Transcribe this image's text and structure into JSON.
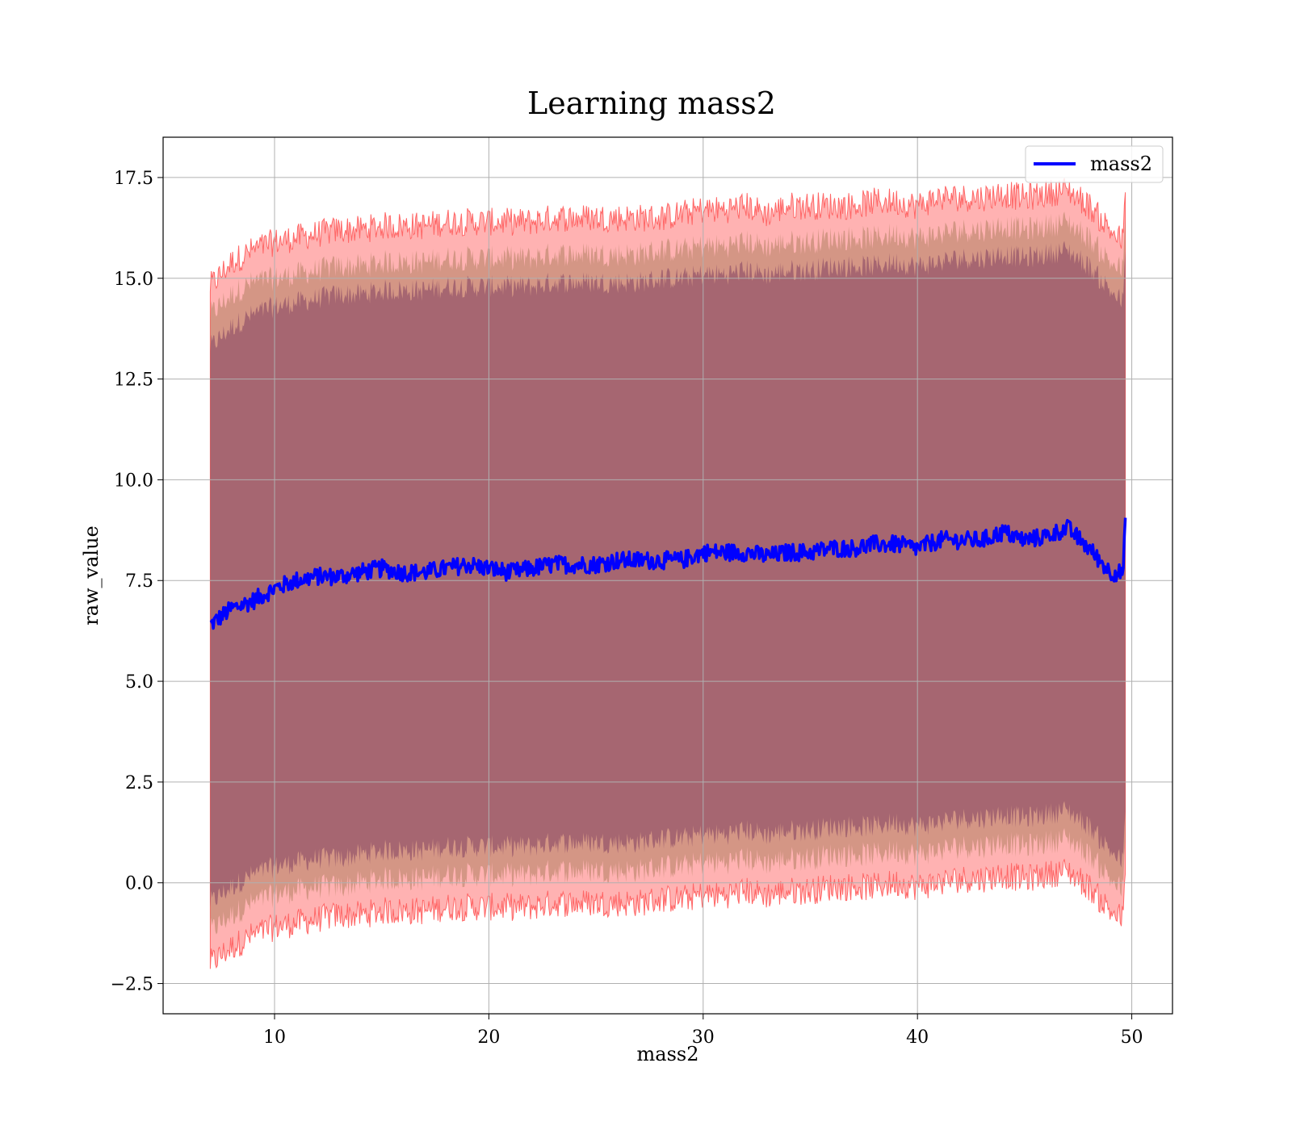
{
  "chart_data": {
    "type": "line",
    "title": "Learning mass2",
    "xlabel": "mass2",
    "ylabel": "raw_value",
    "xlim": [
      4.8,
      51.9
    ],
    "ylim": [
      -3.25,
      18.5
    ],
    "xticks": [
      10,
      20,
      30,
      40,
      50
    ],
    "yticks": [
      -2.5,
      0.0,
      2.5,
      5.0,
      7.5,
      10.0,
      12.5,
      15.0,
      17.5
    ],
    "xtick_labels": [
      "10",
      "20",
      "30",
      "40",
      "50"
    ],
    "ytick_labels": [
      "−2.5",
      "0.0",
      "2.5",
      "5.0",
      "7.5",
      "10.0",
      "12.5",
      "15.0",
      "17.5"
    ],
    "grid": true,
    "legend": {
      "position": "top-right",
      "entries": [
        "mass2"
      ]
    },
    "colors": {
      "line": "#0000ff",
      "band_outer": "#ff7f7f",
      "band_outer_edge": "#ff6666",
      "band_middle": "#b08060",
      "band_inner": "#804060"
    },
    "series": [
      {
        "name": "mass2",
        "x": [
          7.0,
          8.0,
          9.0,
          10.0,
          11.0,
          12.0,
          13.0,
          14.0,
          15.0,
          16.0,
          17.0,
          18.0,
          19.0,
          20.0,
          21.0,
          22.0,
          23.0,
          24.0,
          25.0,
          26.0,
          27.0,
          28.0,
          29.0,
          30.0,
          31.0,
          32.0,
          33.0,
          34.0,
          35.0,
          36.0,
          37.0,
          38.0,
          39.0,
          40.0,
          41.0,
          42.0,
          43.0,
          44.0,
          45.0,
          46.0,
          47.0,
          48.0,
          49.0,
          49.6,
          49.7
        ],
        "y": [
          6.4,
          6.8,
          7.0,
          7.3,
          7.5,
          7.6,
          7.6,
          7.7,
          7.8,
          7.7,
          7.7,
          7.8,
          7.9,
          7.8,
          7.7,
          7.8,
          7.9,
          7.9,
          7.9,
          8.0,
          8.0,
          8.0,
          8.0,
          8.2,
          8.2,
          8.2,
          8.1,
          8.2,
          8.2,
          8.3,
          8.3,
          8.4,
          8.4,
          8.3,
          8.5,
          8.5,
          8.5,
          8.7,
          8.5,
          8.6,
          8.8,
          8.3,
          7.7,
          7.7,
          9.0
        ],
        "outer_upper": [
          14.8,
          15.4,
          15.7,
          15.9,
          16.0,
          16.1,
          16.2,
          16.2,
          16.3,
          16.3,
          16.3,
          16.4,
          16.4,
          16.4,
          16.4,
          16.4,
          16.5,
          16.5,
          16.5,
          16.5,
          16.5,
          16.5,
          16.6,
          16.7,
          16.7,
          16.8,
          16.6,
          16.8,
          16.8,
          16.8,
          16.8,
          16.9,
          16.9,
          16.8,
          17.0,
          17.0,
          17.0,
          17.1,
          17.0,
          17.1,
          17.2,
          16.8,
          16.2,
          15.9,
          17.3
        ],
        "middle_upper": [
          14.1,
          14.6,
          14.9,
          15.0,
          15.1,
          15.2,
          15.3,
          15.3,
          15.4,
          15.4,
          15.4,
          15.5,
          15.5,
          15.5,
          15.5,
          15.5,
          15.6,
          15.6,
          15.6,
          15.6,
          15.6,
          15.7,
          15.7,
          15.8,
          15.8,
          15.9,
          15.8,
          15.9,
          15.9,
          16.0,
          16.0,
          16.0,
          16.1,
          16.0,
          16.1,
          16.2,
          16.2,
          16.3,
          16.2,
          16.3,
          16.4,
          16.0,
          15.4,
          15.2,
          16.6
        ],
        "inner_upper": [
          13.3,
          13.8,
          14.1,
          14.3,
          14.4,
          14.5,
          14.6,
          14.6,
          14.7,
          14.7,
          14.7,
          14.8,
          14.8,
          14.8,
          14.8,
          14.8,
          14.9,
          14.9,
          14.9,
          14.9,
          14.9,
          15.0,
          15.0,
          15.1,
          15.1,
          15.2,
          15.1,
          15.2,
          15.2,
          15.3,
          15.3,
          15.3,
          15.4,
          15.3,
          15.4,
          15.5,
          15.5,
          15.6,
          15.5,
          15.6,
          15.7,
          15.3,
          14.7,
          14.4,
          15.8
        ],
        "inner_lower": [
          -0.5,
          -0.1,
          0.2,
          0.4,
          0.5,
          0.6,
          0.6,
          0.7,
          0.8,
          0.8,
          0.8,
          0.9,
          0.9,
          0.9,
          0.9,
          0.9,
          1.0,
          1.0,
          1.0,
          1.0,
          1.0,
          1.1,
          1.1,
          1.2,
          1.2,
          1.3,
          1.2,
          1.3,
          1.3,
          1.4,
          1.4,
          1.4,
          1.5,
          1.4,
          1.5,
          1.6,
          1.6,
          1.7,
          1.6,
          1.7,
          1.8,
          1.4,
          0.8,
          0.5,
          1.9
        ],
        "middle_lower": [
          -1.2,
          -0.8,
          -0.5,
          -0.3,
          -0.2,
          -0.1,
          -0.1,
          0.0,
          0.1,
          0.1,
          0.1,
          0.2,
          0.2,
          0.2,
          0.2,
          0.2,
          0.3,
          0.3,
          0.3,
          0.3,
          0.3,
          0.4,
          0.4,
          0.5,
          0.5,
          0.6,
          0.5,
          0.6,
          0.6,
          0.7,
          0.7,
          0.7,
          0.8,
          0.7,
          0.8,
          0.9,
          0.9,
          1.0,
          0.9,
          1.0,
          1.1,
          0.7,
          0.1,
          -0.2,
          1.2
        ],
        "outer_lower": [
          -2.0,
          -1.6,
          -1.3,
          -1.1,
          -1.0,
          -0.9,
          -0.8,
          -0.8,
          -0.7,
          -0.7,
          -0.7,
          -0.6,
          -0.6,
          -0.6,
          -0.6,
          -0.6,
          -0.5,
          -0.5,
          -0.5,
          -0.5,
          -0.5,
          -0.4,
          -0.4,
          -0.3,
          -0.3,
          -0.2,
          -0.3,
          -0.2,
          -0.2,
          -0.1,
          -0.1,
          -0.1,
          0.0,
          -0.1,
          0.0,
          0.1,
          0.1,
          0.2,
          0.1,
          0.2,
          0.3,
          -0.1,
          -0.7,
          -0.9,
          0.4
        ]
      }
    ]
  }
}
